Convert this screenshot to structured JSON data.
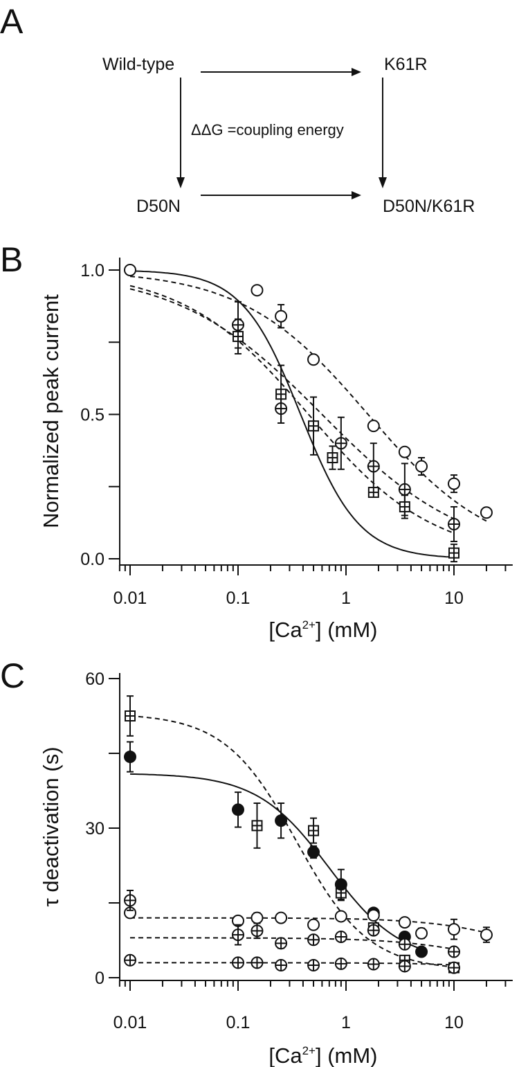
{
  "panel_a": {
    "label": "A",
    "nodes": {
      "wild_type": "Wild-type",
      "k61r": "K61R",
      "d50n": "D50N",
      "double": "D50N/K61R"
    },
    "annotation": "ΔΔG =coupling energy"
  },
  "chart_data": [
    {
      "panel": "B",
      "type": "scatter",
      "xscale": "log",
      "ylabel": "Normalized peak current",
      "xlabel": {
        "pre": "[Ca",
        "sup": "2+",
        "post": "] (mM)"
      },
      "xlim": [
        0.0075,
        35
      ],
      "ylim": [
        0,
        1.0
      ],
      "xticks": [
        {
          "v": 0.01,
          "label": "0.01"
        },
        {
          "v": 0.1,
          "label": "0.1"
        },
        {
          "v": 1,
          "label": "1"
        },
        {
          "v": 10,
          "label": "10"
        }
      ],
      "yticks": [
        {
          "v": 0,
          "label": "0.0"
        },
        {
          "v": 0.25,
          "label": ""
        },
        {
          "v": 0.5,
          "label": "0.5"
        },
        {
          "v": 0.75,
          "label": ""
        },
        {
          "v": 1.0,
          "label": "1.0"
        }
      ],
      "grid": false,
      "series": [
        {
          "symbol": "circle",
          "points": [
            {
              "x": 0.01,
              "y": 1.0,
              "err": 0
            },
            {
              "x": 0.15,
              "y": 0.93,
              "err": 0
            },
            {
              "x": 0.25,
              "y": 0.84,
              "err": 0.04
            },
            {
              "x": 0.5,
              "y": 0.69,
              "err": 0
            },
            {
              "x": 1.8,
              "y": 0.46,
              "err": 0
            },
            {
              "x": 3.5,
              "y": 0.37,
              "err": 0
            },
            {
              "x": 5,
              "y": 0.32,
              "err": 0.03
            },
            {
              "x": 10,
              "y": 0.26,
              "err": 0.03
            },
            {
              "x": 20,
              "y": 0.16,
              "err": 0
            }
          ],
          "fit": {
            "style": "dashed",
            "top": 1.0,
            "bottom": 0,
            "ic50": 1.6,
            "n": 0.75,
            "xmin": 0.01,
            "xmax": 20
          }
        },
        {
          "symbol": "circle-plus",
          "points": [
            {
              "x": 0.1,
              "y": 0.81,
              "err": 0.08
            },
            {
              "x": 0.25,
              "y": 0.52,
              "err": 0.05
            },
            {
              "x": 0.9,
              "y": 0.4,
              "err": 0.09
            },
            {
              "x": 1.8,
              "y": 0.32,
              "err": 0.08
            },
            {
              "x": 3.5,
              "y": 0.24,
              "err": 0.09
            },
            {
              "x": 10,
              "y": 0.12,
              "err": 0.06
            }
          ],
          "fit": {
            "style": "dashed",
            "top": 1.0,
            "bottom": 0,
            "ic50": 0.6,
            "n": 0.65,
            "xmin": 0.01,
            "xmax": 10
          }
        },
        {
          "symbol": "square-plus",
          "points": [
            {
              "x": 0.1,
              "y": 0.77,
              "err": 0.06
            },
            {
              "x": 0.25,
              "y": 0.57,
              "err": 0.1
            },
            {
              "x": 0.5,
              "y": 0.46,
              "err": 0.1
            },
            {
              "x": 0.75,
              "y": 0.35,
              "err": 0.04
            },
            {
              "x": 1.8,
              "y": 0.23,
              "err": 0.01
            },
            {
              "x": 3.5,
              "y": 0.18,
              "err": 0.04
            },
            {
              "x": 10,
              "y": 0.02,
              "err": 0.03
            }
          ],
          "fit": {
            "style": "dashed",
            "top": 1.0,
            "bottom": 0,
            "ic50": 0.45,
            "n": 0.75,
            "xmin": 0.01,
            "xmax": 10
          }
        },
        {
          "symbol": "none",
          "points": [],
          "fit": {
            "style": "solid",
            "top": 1.0,
            "bottom": 0,
            "ic50": 0.38,
            "n": 1.6,
            "xmin": 0.01,
            "xmax": 10
          }
        }
      ]
    },
    {
      "panel": "C",
      "type": "scatter",
      "xscale": "log",
      "ylabel": "τ deactivation (s)",
      "xlabel": {
        "pre": "[Ca",
        "sup": "2+",
        "post": "] (mM)"
      },
      "xlim": [
        0.0075,
        35
      ],
      "ylim": [
        0,
        60
      ],
      "xticks": [
        {
          "v": 0.01,
          "label": "0.01"
        },
        {
          "v": 0.1,
          "label": "0.1"
        },
        {
          "v": 1,
          "label": "1"
        },
        {
          "v": 10,
          "label": "10"
        }
      ],
      "yticks": [
        {
          "v": 0,
          "label": "0"
        },
        {
          "v": 15,
          "label": ""
        },
        {
          "v": 30,
          "label": "30"
        },
        {
          "v": 45,
          "label": ""
        },
        {
          "v": 60,
          "label": "60"
        }
      ],
      "grid": false,
      "series": [
        {
          "symbol": "square-plus",
          "points": [
            {
              "x": 0.01,
              "y": 52.5,
              "err": 4
            },
            {
              "x": 0.15,
              "y": 30.5,
              "err": 4.5
            },
            {
              "x": 0.5,
              "y": 29.5,
              "err": 2.5
            },
            {
              "x": 0.9,
              "y": 17,
              "err": 1.5
            },
            {
              "x": 1.8,
              "y": 10,
              "err": 0.8
            },
            {
              "x": 3.5,
              "y": 3.5,
              "err": 0.8
            },
            {
              "x": 10,
              "y": 2,
              "err": 0.5
            }
          ],
          "fit": {
            "style": "dashed",
            "top": 53,
            "bottom": 1.5,
            "ic50": 0.35,
            "n": 1.3,
            "xmin": 0.01,
            "xmax": 10
          }
        },
        {
          "symbol": "filled-circle",
          "points": [
            {
              "x": 0.01,
              "y": 44.3,
              "err": 3
            },
            {
              "x": 0.1,
              "y": 33.7,
              "err": 3.5
            },
            {
              "x": 0.25,
              "y": 31.5,
              "err": 3.5
            },
            {
              "x": 0.5,
              "y": 25.2,
              "err": 1.2
            },
            {
              "x": 0.9,
              "y": 18.7,
              "err": 3
            },
            {
              "x": 1.8,
              "y": 13,
              "err": 0
            },
            {
              "x": 3.5,
              "y": 8.2,
              "err": 0
            },
            {
              "x": 5,
              "y": 5.2,
              "err": 0
            }
          ],
          "fit": {
            "style": "solid",
            "top": 41,
            "bottom": 3,
            "ic50": 0.7,
            "n": 1.3,
            "xmin": 0.01,
            "xmax": 5
          }
        },
        {
          "symbol": "circle",
          "points": [
            {
              "x": 0.01,
              "y": 13,
              "err": 0
            },
            {
              "x": 0.1,
              "y": 11.4,
              "err": 0
            },
            {
              "x": 0.15,
              "y": 12,
              "err": 1
            },
            {
              "x": 0.25,
              "y": 12,
              "err": 0.8
            },
            {
              "x": 0.5,
              "y": 10.6,
              "err": 0
            },
            {
              "x": 0.9,
              "y": 12.3,
              "err": 0
            },
            {
              "x": 1.8,
              "y": 12.5,
              "err": 0
            },
            {
              "x": 3.5,
              "y": 11.1,
              "err": 0
            },
            {
              "x": 5,
              "y": 8.9,
              "err": 1
            },
            {
              "x": 10,
              "y": 9.7,
              "err": 2
            },
            {
              "x": 20,
              "y": 8.6,
              "err": 1.5
            }
          ],
          "fit": {
            "style": "dashed",
            "top": 12,
            "bottom": 0,
            "ic50": 60,
            "n": 1,
            "xmin": 0.01,
            "xmax": 20
          }
        },
        {
          "symbol": "circle-plus",
          "points": [
            {
              "x": 0.01,
              "y": 15.5,
              "err": 2
            },
            {
              "x": 0.1,
              "y": 8.6,
              "err": 2
            },
            {
              "x": 0.15,
              "y": 9.4,
              "err": 1.5
            },
            {
              "x": 0.25,
              "y": 6.9,
              "err": 1
            },
            {
              "x": 0.5,
              "y": 7.6,
              "err": 0.8
            },
            {
              "x": 0.9,
              "y": 8.2,
              "err": 0.6
            },
            {
              "x": 1.8,
              "y": 9.5,
              "err": 0.8
            },
            {
              "x": 3.5,
              "y": 6.7,
              "err": 0.8
            },
            {
              "x": 10,
              "y": 5.2,
              "err": 0.8
            }
          ],
          "fit": {
            "style": "dashed",
            "top": 8,
            "bottom": 0,
            "ic50": 25,
            "n": 1,
            "xmin": 0.01,
            "xmax": 10
          }
        },
        {
          "symbol": "circle-plus",
          "points": [
            {
              "x": 0.01,
              "y": 3.5,
              "err": 0.5
            },
            {
              "x": 0.1,
              "y": 3,
              "err": 0.5
            },
            {
              "x": 0.15,
              "y": 3,
              "err": 0.5
            },
            {
              "x": 0.25,
              "y": 2.5,
              "err": 0.5
            },
            {
              "x": 0.5,
              "y": 2.5,
              "err": 0.5
            },
            {
              "x": 0.9,
              "y": 2.8,
              "err": 0.5
            },
            {
              "x": 1.8,
              "y": 2.7,
              "err": 0.5
            },
            {
              "x": 3.5,
              "y": 2.3,
              "err": 0.5
            },
            {
              "x": 10,
              "y": 2,
              "err": 0.5
            }
          ],
          "fit": {
            "style": "dashed",
            "top": 3,
            "bottom": 0,
            "ic50": 60,
            "n": 1,
            "xmin": 0.01,
            "xmax": 10
          }
        }
      ]
    }
  ]
}
